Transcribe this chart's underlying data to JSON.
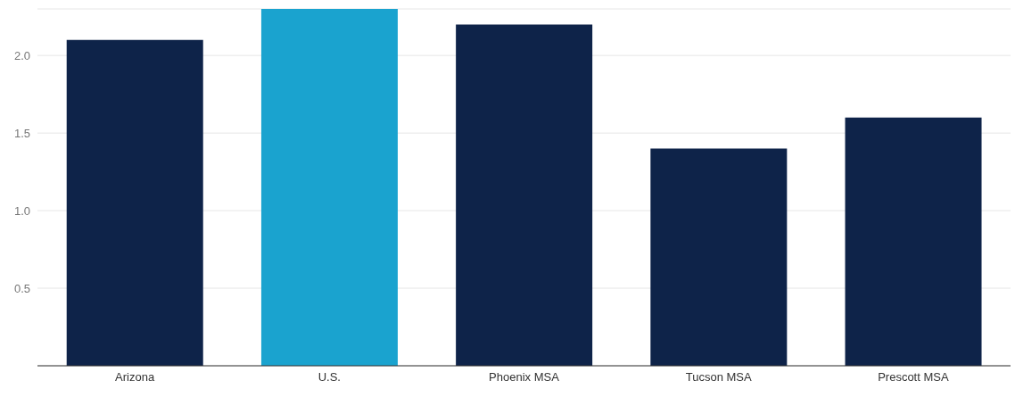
{
  "chart_data": {
    "type": "bar",
    "categories": [
      "Arizona",
      "U.S.",
      "Phoenix MSA",
      "Tucson MSA",
      "Prescott MSA"
    ],
    "values": [
      2.1,
      2.3,
      2.2,
      1.4,
      1.6
    ],
    "colors": [
      "#0e2349",
      "#1aa3cf",
      "#0e2349",
      "#0e2349",
      "#0e2349"
    ],
    "ylim": [
      0,
      2.3
    ],
    "yticks": [
      0.5,
      {
        "value": 1,
        "label": "1.0"
      },
      1.5,
      {
        "value": 2,
        "label": "2.0"
      }
    ],
    "grid": "y"
  }
}
